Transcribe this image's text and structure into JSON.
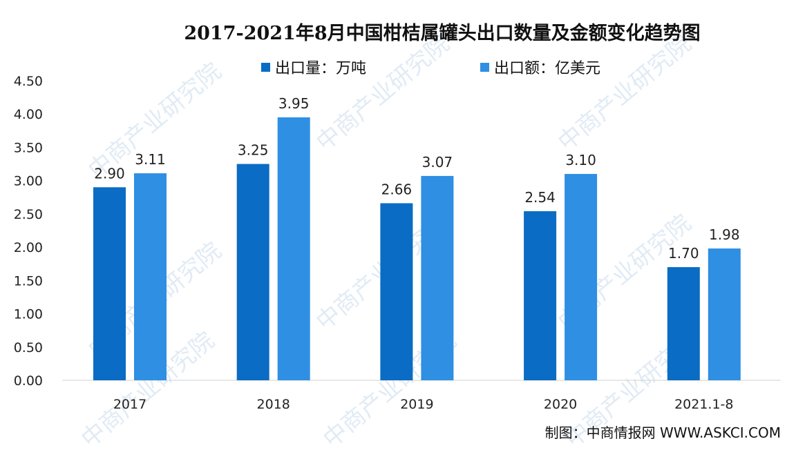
{
  "chart_data": {
    "type": "bar",
    "title": "2017-2021年8月中国柑桔属罐头出口数量及金额变化趋势图",
    "categories": [
      "2017",
      "2018",
      "2019",
      "2020",
      "2021.1-8"
    ],
    "series": [
      {
        "name": "出口量：万吨",
        "color": "#0a6cc4",
        "values": [
          2.9,
          3.25,
          2.66,
          2.54,
          1.7
        ]
      },
      {
        "name": "出口额：亿美元",
        "color": "#2e8fe3",
        "values": [
          3.11,
          3.95,
          3.07,
          3.1,
          1.98
        ]
      }
    ],
    "ylim": [
      0,
      4.5
    ],
    "yticks": [
      "0.00",
      "0.50",
      "1.00",
      "1.50",
      "2.00",
      "2.50",
      "3.00",
      "3.50",
      "4.00",
      "4.50"
    ],
    "grid": false,
    "legend_position": "top-center",
    "xlabel": "",
    "ylabel": ""
  },
  "credit": "制图：中商情报网 WWW.ASKCI.COM",
  "watermark": "中商产业研究院"
}
